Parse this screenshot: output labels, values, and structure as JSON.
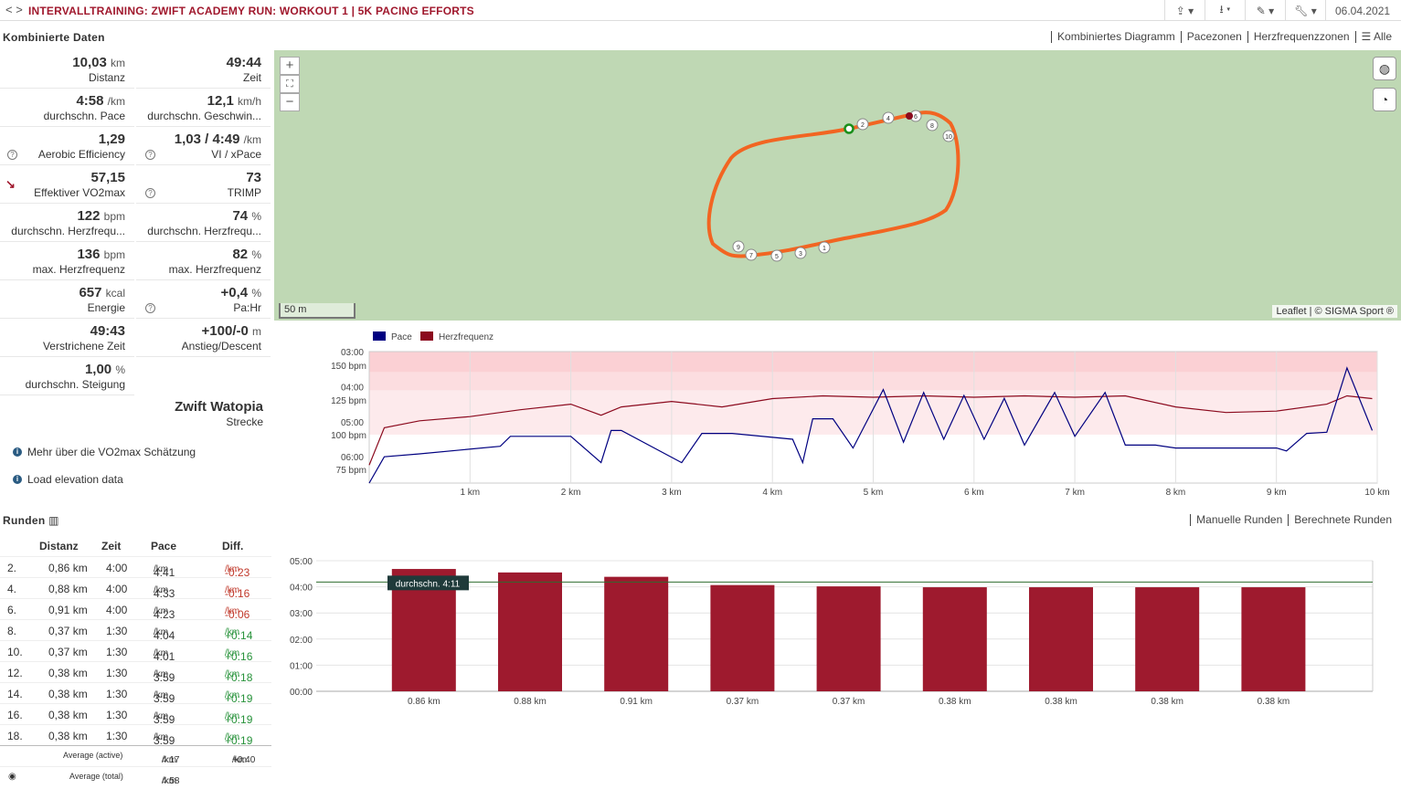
{
  "header": {
    "title": "INTERVALLTRAINING: ZWIFT ACADEMY RUN: WORKOUT 1 | 5K PACING EFFORTS",
    "nav": "< >",
    "date": "06.04.2021",
    "tools": [
      "share-icon",
      "download-icon",
      "magic-icon",
      "wrench-icon"
    ]
  },
  "combined": {
    "heading": "Kombinierte Daten",
    "stats": [
      {
        "value": "10,03",
        "unit": "km",
        "label": "Distanz"
      },
      {
        "value": "49:44",
        "unit": "",
        "label": "Zeit"
      },
      {
        "value": "4:58",
        "unit": "/km",
        "label": "durchschn. Pace"
      },
      {
        "value": "12,1",
        "unit": "km/h",
        "label": "durchschn. Geschwin..."
      },
      {
        "value": "1,29",
        "unit": "",
        "label": "Aerobic Efficiency",
        "help": true
      },
      {
        "value": "1,03 / 4:49",
        "unit": "/km",
        "label": "VI / xPace",
        "help": true
      },
      {
        "value": "57,15",
        "unit": "",
        "label": "Effektiver VO2max",
        "trend": true
      },
      {
        "value": "73",
        "unit": "",
        "label": "TRIMP",
        "help": true
      },
      {
        "value": "122",
        "unit": "bpm",
        "label": "durchschn. Herzfrequ..."
      },
      {
        "value": "74",
        "unit": "%",
        "label": "durchschn. Herzfrequ..."
      },
      {
        "value": "136",
        "unit": "bpm",
        "label": "max. Herzfrequenz"
      },
      {
        "value": "82",
        "unit": "%",
        "label": "max. Herzfrequenz"
      },
      {
        "value": "657",
        "unit": "kcal",
        "label": "Energie"
      },
      {
        "value": "+0,4",
        "unit": "%",
        "label": "Pa:Hr",
        "help": true
      },
      {
        "value": "49:43",
        "unit": "",
        "label": "Verstrichene Zeit"
      },
      {
        "value": "+100/-0",
        "unit": "m",
        "label": "Anstieg/Descent"
      },
      {
        "value": "1,00",
        "unit": "%",
        "label": "durchschn. Steigung"
      }
    ],
    "route": {
      "name": "Zwift Watopia",
      "label": "Strecke"
    },
    "links": [
      "Mehr über die VO2max Schätzung",
      "Load elevation data"
    ]
  },
  "views": {
    "tabs": [
      "Kombiniertes Diagramm",
      "Pacezonen",
      "Herzfrequenzzonen",
      "Alle"
    ]
  },
  "map": {
    "zoom_in": "+",
    "fullscreen": "⛶",
    "zoom_out": "−",
    "scale": "50 m",
    "attribution": "Leaflet | © SIGMA Sport ®",
    "markers": [
      "1",
      "2",
      "3",
      "4",
      "5",
      "6",
      "7",
      "8",
      "9",
      "10"
    ]
  },
  "chart_data": [
    {
      "type": "line",
      "legend": [
        "Pace",
        "Herzfrequenz"
      ],
      "colors": {
        "pace": "#000080",
        "hr": "#8b0a1e"
      },
      "x_ticks": [
        "1 km",
        "2 km",
        "3 km",
        "4 km",
        "5 km",
        "6 km",
        "7 km",
        "8 km",
        "9 km",
        "10 km"
      ],
      "y_left_ticks": [
        "150 bpm",
        "125 bpm",
        "100 bpm",
        "75 bpm"
      ],
      "y_right_ticks": [
        "03:00",
        "04:00",
        "05:00",
        "06:00"
      ],
      "series": [
        {
          "name": "Pace",
          "x": [
            0,
            0.15,
            0.5,
            1.3,
            1.4,
            2.0,
            2.3,
            2.4,
            2.5,
            3.1,
            3.3,
            3.4,
            3.5,
            3.6,
            4.2,
            4.3,
            4.4,
            4.5,
            4.6,
            4.8,
            5.1,
            5.3,
            5.5,
            5.7,
            5.9,
            6.1,
            6.3,
            6.5,
            6.8,
            7.0,
            7.3,
            7.5,
            7.8,
            8.0,
            8.5,
            9.0,
            9.1,
            9.3,
            9.5,
            9.7,
            9.95
          ],
          "y": [
            "6:45",
            "6:00",
            "5:55",
            "5:42",
            "5:25",
            "5:25",
            "6:10",
            "5:15",
            "5:15",
            "6:10",
            "5:20",
            "5:20",
            "5:20",
            "5:20",
            "5:30",
            "6:10",
            "4:55",
            "4:55",
            "4:55",
            "5:45",
            "4:05",
            "5:35",
            "4:10",
            "5:30",
            "4:15",
            "5:30",
            "4:20",
            "5:40",
            "4:10",
            "5:25",
            "4:10",
            "5:40",
            "5:40",
            "5:45",
            "5:45",
            "5:45",
            "5:50",
            "5:20",
            "5:18",
            "3:28",
            "5:15"
          ]
        },
        {
          "name": "Herzfrequenz",
          "x": [
            0,
            0.15,
            0.5,
            1.0,
            1.5,
            2.0,
            2.3,
            2.5,
            3.0,
            3.5,
            4.0,
            4.5,
            5.0,
            5.5,
            6.0,
            6.5,
            7.0,
            7.5,
            8.0,
            8.5,
            9.0,
            9.5,
            9.7,
            9.95
          ],
          "y": [
            78,
            105,
            110,
            113,
            118,
            122,
            114,
            120,
            124,
            120,
            126,
            128,
            127,
            128,
            127,
            128,
            127,
            128,
            120,
            116,
            117,
            122,
            128,
            126
          ]
        }
      ]
    },
    {
      "type": "bar",
      "title": "durchschn. 4:11",
      "categories": [
        "0.86 km",
        "0.88 km",
        "0.91 km",
        "0.37 km",
        "0.37 km",
        "0.38 km",
        "0.38 km",
        "0.38 km",
        "0.38 km"
      ],
      "values": [
        "4:41",
        "4:33",
        "4:23",
        "4:04",
        "4:01",
        "3:59",
        "3:59",
        "3:59",
        "3:59"
      ],
      "y_ticks": [
        "05:00",
        "04:00",
        "03:00",
        "02:00",
        "01:00",
        "00:00"
      ],
      "average": "4:11",
      "color": "#9e1a2e"
    }
  ],
  "laps": {
    "heading": "Runden",
    "tabs": [
      "Manuelle Runden",
      "Berechnete Runden"
    ],
    "columns": [
      "Distanz",
      "Zeit",
      "Pace",
      "Diff."
    ],
    "rows": [
      {
        "n": "2.",
        "dist": "0,86 km",
        "time": "4:00",
        "pace": "4:41",
        "diff": "-0:23"
      },
      {
        "n": "4.",
        "dist": "0,88 km",
        "time": "4:00",
        "pace": "4:33",
        "diff": "-0:16"
      },
      {
        "n": "6.",
        "dist": "0,91 km",
        "time": "4:00",
        "pace": "4:23",
        "diff": "-0:06"
      },
      {
        "n": "8.",
        "dist": "0,37 km",
        "time": "1:30",
        "pace": "4:04",
        "diff": "+0:14"
      },
      {
        "n": "10.",
        "dist": "0,37 km",
        "time": "1:30",
        "pace": "4:01",
        "diff": "+0:16"
      },
      {
        "n": "12.",
        "dist": "0,38 km",
        "time": "1:30",
        "pace": "3:59",
        "diff": "+0:18"
      },
      {
        "n": "14.",
        "dist": "0,38 km",
        "time": "1:30",
        "pace": "3:59",
        "diff": "+0:19"
      },
      {
        "n": "16.",
        "dist": "0,38 km",
        "time": "1:30",
        "pace": "3:59",
        "diff": "+0:19"
      },
      {
        "n": "18.",
        "dist": "0,38 km",
        "time": "1:30",
        "pace": "3:59",
        "diff": "+0:19"
      }
    ],
    "unit": "/km",
    "avg_active": {
      "label": "Average (active)",
      "pace": "4:17",
      "diff": "+0:40"
    },
    "avg_total": {
      "label": "Average (total)",
      "pace": "4:58"
    }
  }
}
